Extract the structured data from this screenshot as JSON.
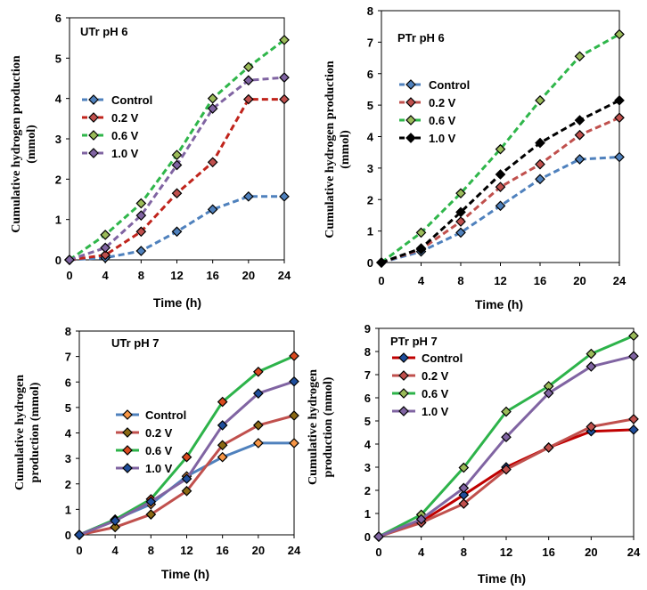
{
  "chart_data": [
    {
      "type": "line",
      "title": "UTr pH 6",
      "xlabel": "Time (h)",
      "ylabel": "Cumulative  hydrogen production (mmol)",
      "x": [
        0,
        4,
        8,
        12,
        16,
        20,
        24
      ],
      "xlim": [
        0,
        24
      ],
      "ylim": [
        0,
        6
      ],
      "yticks": [
        0,
        1,
        2,
        3,
        4,
        5,
        6
      ],
      "grid": false,
      "style": "dashed",
      "legend_position": "center-left",
      "series": [
        {
          "name": "Control",
          "color": "#4f81bd",
          "marker": "#4f81bd",
          "values": [
            0,
            0.05,
            0.22,
            0.7,
            1.25,
            1.57,
            1.57
          ]
        },
        {
          "name": "0.2 V",
          "color": "#c0241c",
          "marker": "#c0504d",
          "values": [
            0,
            0.12,
            0.7,
            1.65,
            2.42,
            3.98,
            3.98
          ]
        },
        {
          "name": "0.6 V",
          "color": "#2fb64a",
          "marker": "#9bbb59",
          "values": [
            0,
            0.62,
            1.4,
            2.6,
            4.0,
            4.78,
            5.45
          ]
        },
        {
          "name": "1.0 V",
          "color": "#8064a2",
          "marker": "#8064a2",
          "values": [
            0,
            0.3,
            1.1,
            2.35,
            3.75,
            4.45,
            4.52
          ]
        }
      ]
    },
    {
      "type": "line",
      "title": "PTr pH 6",
      "xlabel": "Time (h)",
      "ylabel": "Cumulative  hydrogen production (mmol)",
      "x": [
        0,
        4,
        8,
        12,
        16,
        20,
        24
      ],
      "xlim": [
        0,
        24
      ],
      "ylim": [
        0,
        8
      ],
      "yticks": [
        0,
        1,
        2,
        3,
        4,
        5,
        6,
        7,
        8
      ],
      "grid": false,
      "style": "dashed",
      "legend_position": "top-left",
      "series": [
        {
          "name": "Control",
          "color": "#4f81bd",
          "marker": "#4f81bd",
          "values": [
            0,
            0.35,
            0.95,
            1.8,
            2.65,
            3.28,
            3.35
          ]
        },
        {
          "name": "0.2 V",
          "color": "#c0504d",
          "marker": "#c0504d",
          "values": [
            0,
            0.42,
            1.3,
            2.4,
            3.12,
            4.05,
            4.6
          ]
        },
        {
          "name": "0.6 V",
          "color": "#2fb64a",
          "marker": "#9bbb59",
          "values": [
            0,
            0.95,
            2.2,
            3.6,
            5.15,
            6.55,
            7.25
          ]
        },
        {
          "name": "1.0 V",
          "color": "#000000",
          "marker": "#000000",
          "values": [
            0,
            0.45,
            1.6,
            2.8,
            3.8,
            4.52,
            5.15
          ]
        }
      ]
    },
    {
      "type": "line",
      "title": "UTr pH 7",
      "xlabel": "Time (h)",
      "ylabel": "Cumulative hydrogen production (mmol)",
      "x": [
        0,
        4,
        8,
        12,
        16,
        20,
        24
      ],
      "xlim": [
        0,
        24
      ],
      "ylim": [
        0,
        8
      ],
      "yticks": [
        0,
        1,
        2,
        3,
        4,
        5,
        6,
        7,
        8
      ],
      "grid": false,
      "style": "solid",
      "legend_position": "center-left",
      "series": [
        {
          "name": "Control",
          "color": "#4f81bd",
          "marker": "#f79646",
          "values": [
            0,
            0.6,
            1.2,
            2.3,
            3.05,
            3.6,
            3.6
          ]
        },
        {
          "name": "0.2 V",
          "color": "#c0504d",
          "marker": "#8b6914",
          "values": [
            0,
            0.3,
            0.8,
            1.72,
            3.52,
            4.3,
            4.68
          ]
        },
        {
          "name": "0.6 V",
          "color": "#2db34a",
          "marker": "#d94a1f",
          "values": [
            0,
            0.6,
            1.4,
            3.05,
            5.22,
            6.4,
            7.02
          ]
        },
        {
          "name": "1.0 V",
          "color": "#8064a2",
          "marker": "#1f4e9c",
          "values": [
            0,
            0.55,
            1.3,
            2.2,
            4.3,
            5.55,
            6.02
          ]
        }
      ]
    },
    {
      "type": "line",
      "title": "PTr pH 7",
      "xlabel": "Time (h)",
      "ylabel": "Cumulative hydrogen production (mmol)",
      "x": [
        0,
        4,
        8,
        12,
        16,
        20,
        24
      ],
      "xlim": [
        0,
        24
      ],
      "ylim": [
        0,
        9
      ],
      "yticks": [
        0,
        1,
        2,
        3,
        4,
        5,
        6,
        7,
        8,
        9
      ],
      "grid": false,
      "style": "solid",
      "legend_position": "top-left",
      "series": [
        {
          "name": "Control",
          "color": "#c00000",
          "marker": "#1f4e9c",
          "values": [
            0,
            0.65,
            1.8,
            3.0,
            3.85,
            4.55,
            4.62
          ]
        },
        {
          "name": "0.2 V",
          "color": "#c0504d",
          "marker": "#c0504d",
          "values": [
            0,
            0.6,
            1.42,
            2.9,
            3.85,
            4.75,
            5.08
          ]
        },
        {
          "name": "0.6 V",
          "color": "#2db34a",
          "marker": "#9bbb59",
          "values": [
            0,
            0.95,
            2.98,
            5.4,
            6.5,
            7.9,
            8.68
          ]
        },
        {
          "name": "1.0 V",
          "color": "#8064a2",
          "marker": "#8064a2",
          "values": [
            0,
            0.75,
            2.1,
            4.3,
            6.2,
            7.35,
            7.8
          ]
        }
      ]
    }
  ]
}
